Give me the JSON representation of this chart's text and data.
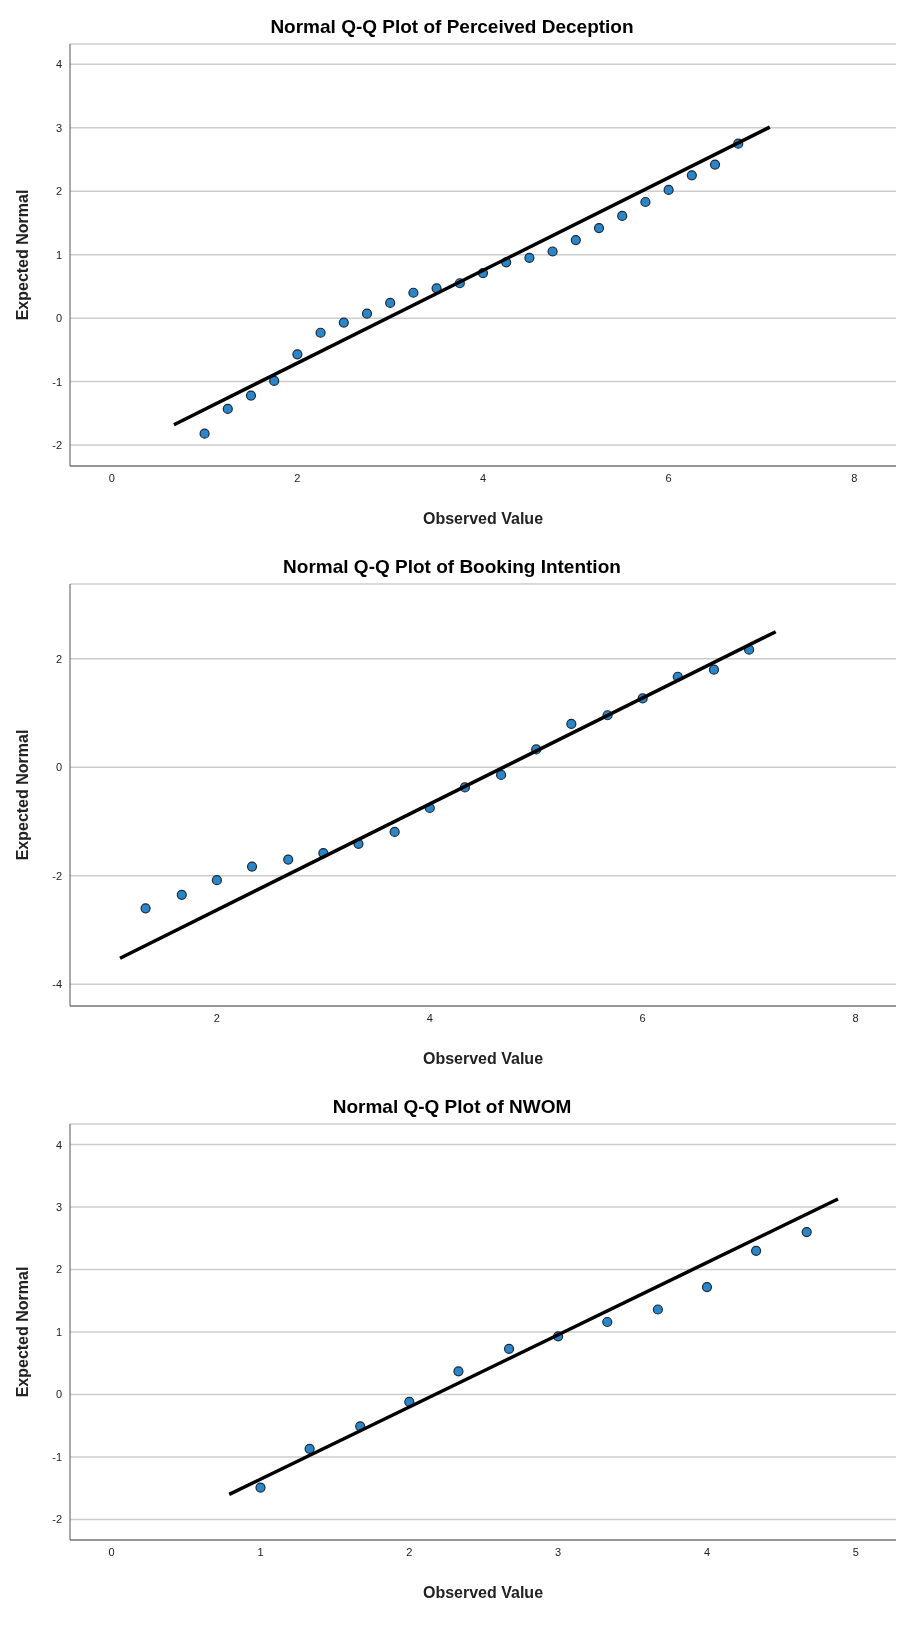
{
  "chart_data": [
    {
      "type": "scatter",
      "title": "Normal Q-Q Plot of Perceived Deception",
      "xlabel": "Observed Value",
      "ylabel": "Expected Normal",
      "xlim": [
        -0.45,
        8.45
      ],
      "ylim": [
        -2.33,
        4.32
      ],
      "xticks": [
        0,
        2,
        4,
        6,
        8
      ],
      "yticks": [
        -2,
        -1,
        0,
        1,
        2,
        3,
        4
      ],
      "grid": "y",
      "series": [
        {
          "marker": "circle",
          "color": "#2a86c8",
          "x": [
            1,
            1.25,
            1.5,
            1.75,
            2,
            2.25,
            2.5,
            2.75,
            3,
            3.25,
            3.5,
            3.75,
            4,
            4.25,
            4.5,
            4.75,
            5,
            5.25,
            5.5,
            5.75,
            6,
            6.25,
            6.5,
            6.75
          ],
          "values": [
            -1.82,
            -1.43,
            -1.22,
            -0.99,
            -0.57,
            -0.23,
            -0.07,
            0.07,
            0.24,
            0.4,
            0.47,
            0.55,
            0.71,
            0.88,
            0.95,
            1.05,
            1.23,
            1.42,
            1.61,
            1.83,
            2.02,
            2.25,
            2.42,
            2.75
          ]
        },
        {
          "type": "line",
          "marker": "none",
          "color": "#000000",
          "x": [
            0.67,
            7.09
          ],
          "values": [
            -1.68,
            3.01
          ]
        }
      ]
    },
    {
      "type": "scatter",
      "title": "Normal Q-Q Plot of Booking Intention",
      "xlabel": "Observed Value",
      "ylabel": "Expected Normal",
      "xlim": [
        0.62,
        8.38
      ],
      "ylim": [
        -4.4,
        3.38
      ],
      "xticks": [
        2,
        4,
        6,
        8
      ],
      "yticks": [
        -4,
        -2,
        0,
        2
      ],
      "grid": "y",
      "series": [
        {
          "marker": "circle",
          "color": "#2a86c8",
          "x": [
            1.33,
            1.67,
            2,
            2.33,
            2.67,
            3,
            3.33,
            3.67,
            4,
            4.33,
            4.67,
            5,
            5.33,
            5.67,
            6,
            6.33,
            6.67,
            7
          ],
          "values": [
            -2.6,
            -2.35,
            -2.08,
            -1.83,
            -1.7,
            -1.58,
            -1.41,
            -1.19,
            -0.75,
            -0.37,
            -0.14,
            0.33,
            0.8,
            0.96,
            1.27,
            1.67,
            1.8,
            2.17
          ]
        },
        {
          "type": "line",
          "marker": "none",
          "color": "#000000",
          "x": [
            1.09,
            7.25
          ],
          "values": [
            -3.52,
            2.5
          ]
        }
      ]
    },
    {
      "type": "scatter",
      "title": "Normal Q-Q Plot of NWOM",
      "xlabel": "Observed Value",
      "ylabel": "Expected Normal",
      "xlim": [
        -0.28,
        5.27
      ],
      "ylim": [
        -2.33,
        4.33
      ],
      "xticks": [
        0,
        1,
        2,
        3,
        4,
        5
      ],
      "yticks": [
        -2,
        -1,
        0,
        1,
        2,
        3,
        4
      ],
      "grid": "y",
      "series": [
        {
          "marker": "circle",
          "color": "#2a86c8",
          "x": [
            1,
            1.33,
            1.67,
            2,
            2.33,
            2.67,
            3,
            3.33,
            3.67,
            4,
            4.33,
            4.67
          ],
          "values": [
            -1.49,
            -0.87,
            -0.51,
            -0.12,
            0.37,
            0.73,
            0.93,
            1.16,
            1.36,
            1.72,
            2.3,
            2.6
          ]
        },
        {
          "type": "line",
          "marker": "none",
          "color": "#000000",
          "x": [
            0.79,
            4.88
          ],
          "values": [
            -1.6,
            3.13
          ]
        }
      ]
    }
  ]
}
